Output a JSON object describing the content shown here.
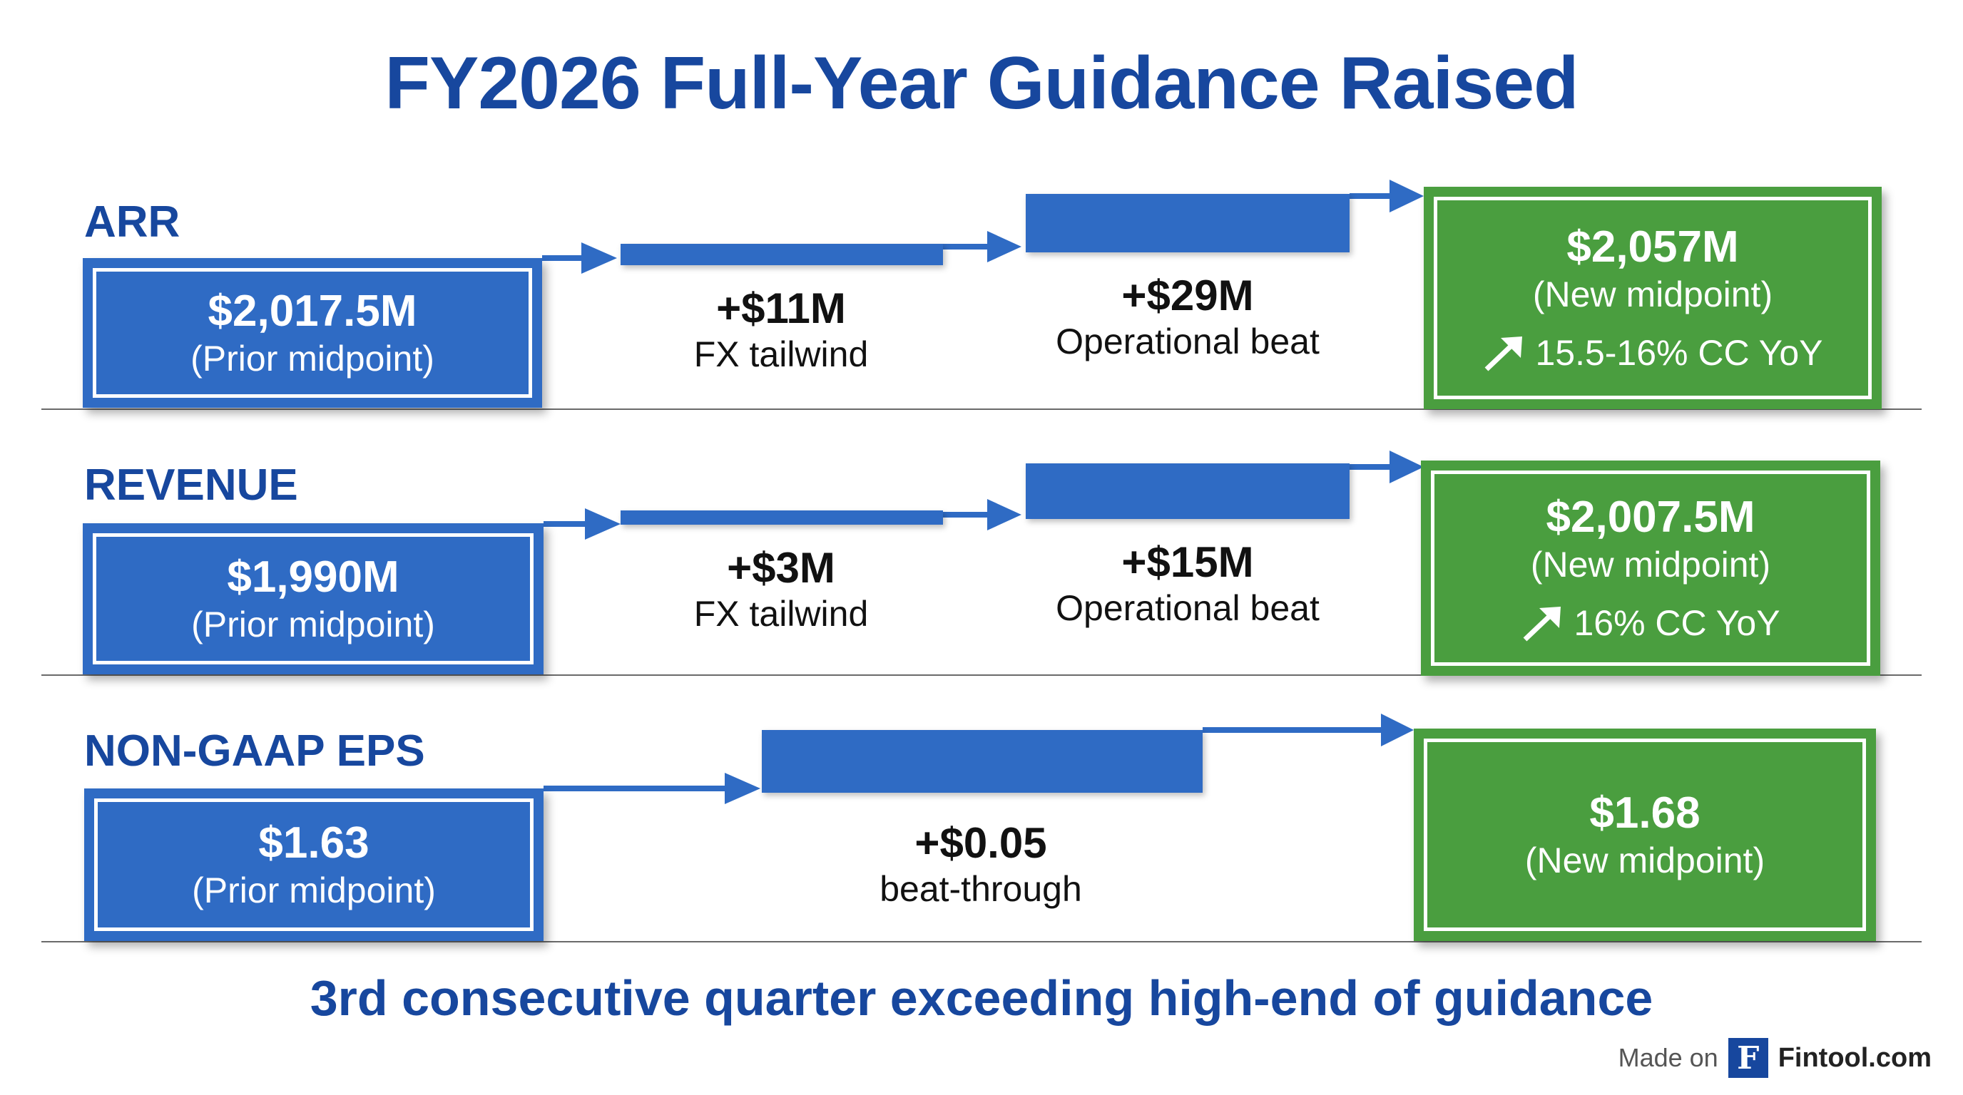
{
  "title": "FY2026 Full-Year Guidance Raised",
  "footer_note": "3rd consecutive quarter exceeding high-end of guidance",
  "attribution": {
    "prefix": "Made on",
    "logo_letter": "F",
    "brand": "Fintool.com"
  },
  "colors": {
    "title": "#17479e",
    "blue": "#2f6bc4",
    "green": "#4a9e3f",
    "divider": "#6a6a6a"
  },
  "icons": {
    "cc_arrow": "arrow-up-right-icon"
  },
  "chart_data": {
    "type": "waterfall",
    "unit": "USD",
    "series": [
      {
        "name": "ARR",
        "label": "ARR",
        "start": {
          "value": 2017.5,
          "text": "$2,017.5M",
          "caption": "(Prior midpoint)"
        },
        "steps": [
          {
            "value": 11,
            "text": "+$11M",
            "caption": "FX tailwind"
          },
          {
            "value": 29,
            "text": "+$29M",
            "caption": "Operational beat"
          }
        ],
        "end": {
          "value": 2057,
          "text": "$2,057M",
          "caption": "(New midpoint)",
          "growth": "15.5-16% CC YoY"
        }
      },
      {
        "name": "Revenue",
        "label": "REVENUE",
        "start": {
          "value": 1990,
          "text": "$1,990M",
          "caption": "(Prior midpoint)"
        },
        "steps": [
          {
            "value": 3,
            "text": "+$3M",
            "caption": "FX tailwind"
          },
          {
            "value": 15,
            "text": "+$15M",
            "caption": "Operational beat"
          }
        ],
        "end": {
          "value": 2007.5,
          "text": "$2,007.5M",
          "caption": "(New midpoint)",
          "growth": "16% CC YoY"
        }
      },
      {
        "name": "Non-GAAP EPS",
        "label": "NON-GAAP EPS",
        "start": {
          "value": 1.63,
          "text": "$1.63",
          "caption": "(Prior midpoint)"
        },
        "steps": [
          {
            "value": 0.05,
            "text": "+$0.05",
            "caption": "beat-through"
          }
        ],
        "end": {
          "value": 1.68,
          "text": "$1.68",
          "caption": "(New midpoint)",
          "growth": null
        }
      }
    ]
  }
}
